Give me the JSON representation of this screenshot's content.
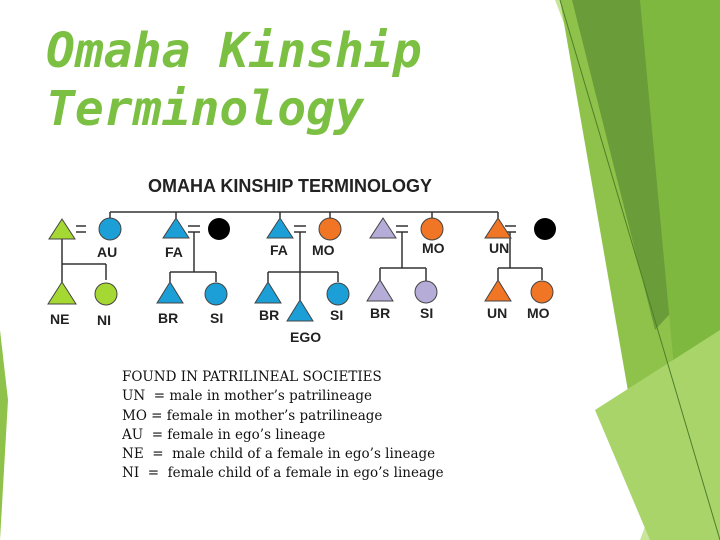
{
  "slide": {
    "title_line1": "Omaha Kinship",
    "title_line2": "Terminology"
  },
  "diagram": {
    "heading": "OMAHA KINSHIP TERMINOLOGY",
    "labels": {
      "au": "AU",
      "fa1": "FA",
      "fa2": "FA",
      "mo1": "MO",
      "mo2": "MO",
      "un1": "UN",
      "ne": "NE",
      "ni": "NI",
      "br1": "BR",
      "si1": "SI",
      "br2": "BR",
      "ego": "EGO",
      "si2": "SI",
      "br3": "BR",
      "si3": "SI",
      "un2": "UN",
      "mo3": "MO"
    },
    "colors": {
      "lime": "#a6d833",
      "blue": "#1b9fd6",
      "orange": "#f07524",
      "lavender": "#b5acd7",
      "black": "#000000"
    }
  },
  "legend": {
    "heading": "FOUND IN PATRILINEAL SOCIETIES",
    "lines": [
      "UN  = male in mother’s patrilineage",
      "MO = female in mother’s patrilineage",
      "AU  = female in ego’s lineage",
      "NE  =  male child of a female in ego’s lineage",
      "NI  =  female child of a female in ego’s lineage"
    ]
  }
}
